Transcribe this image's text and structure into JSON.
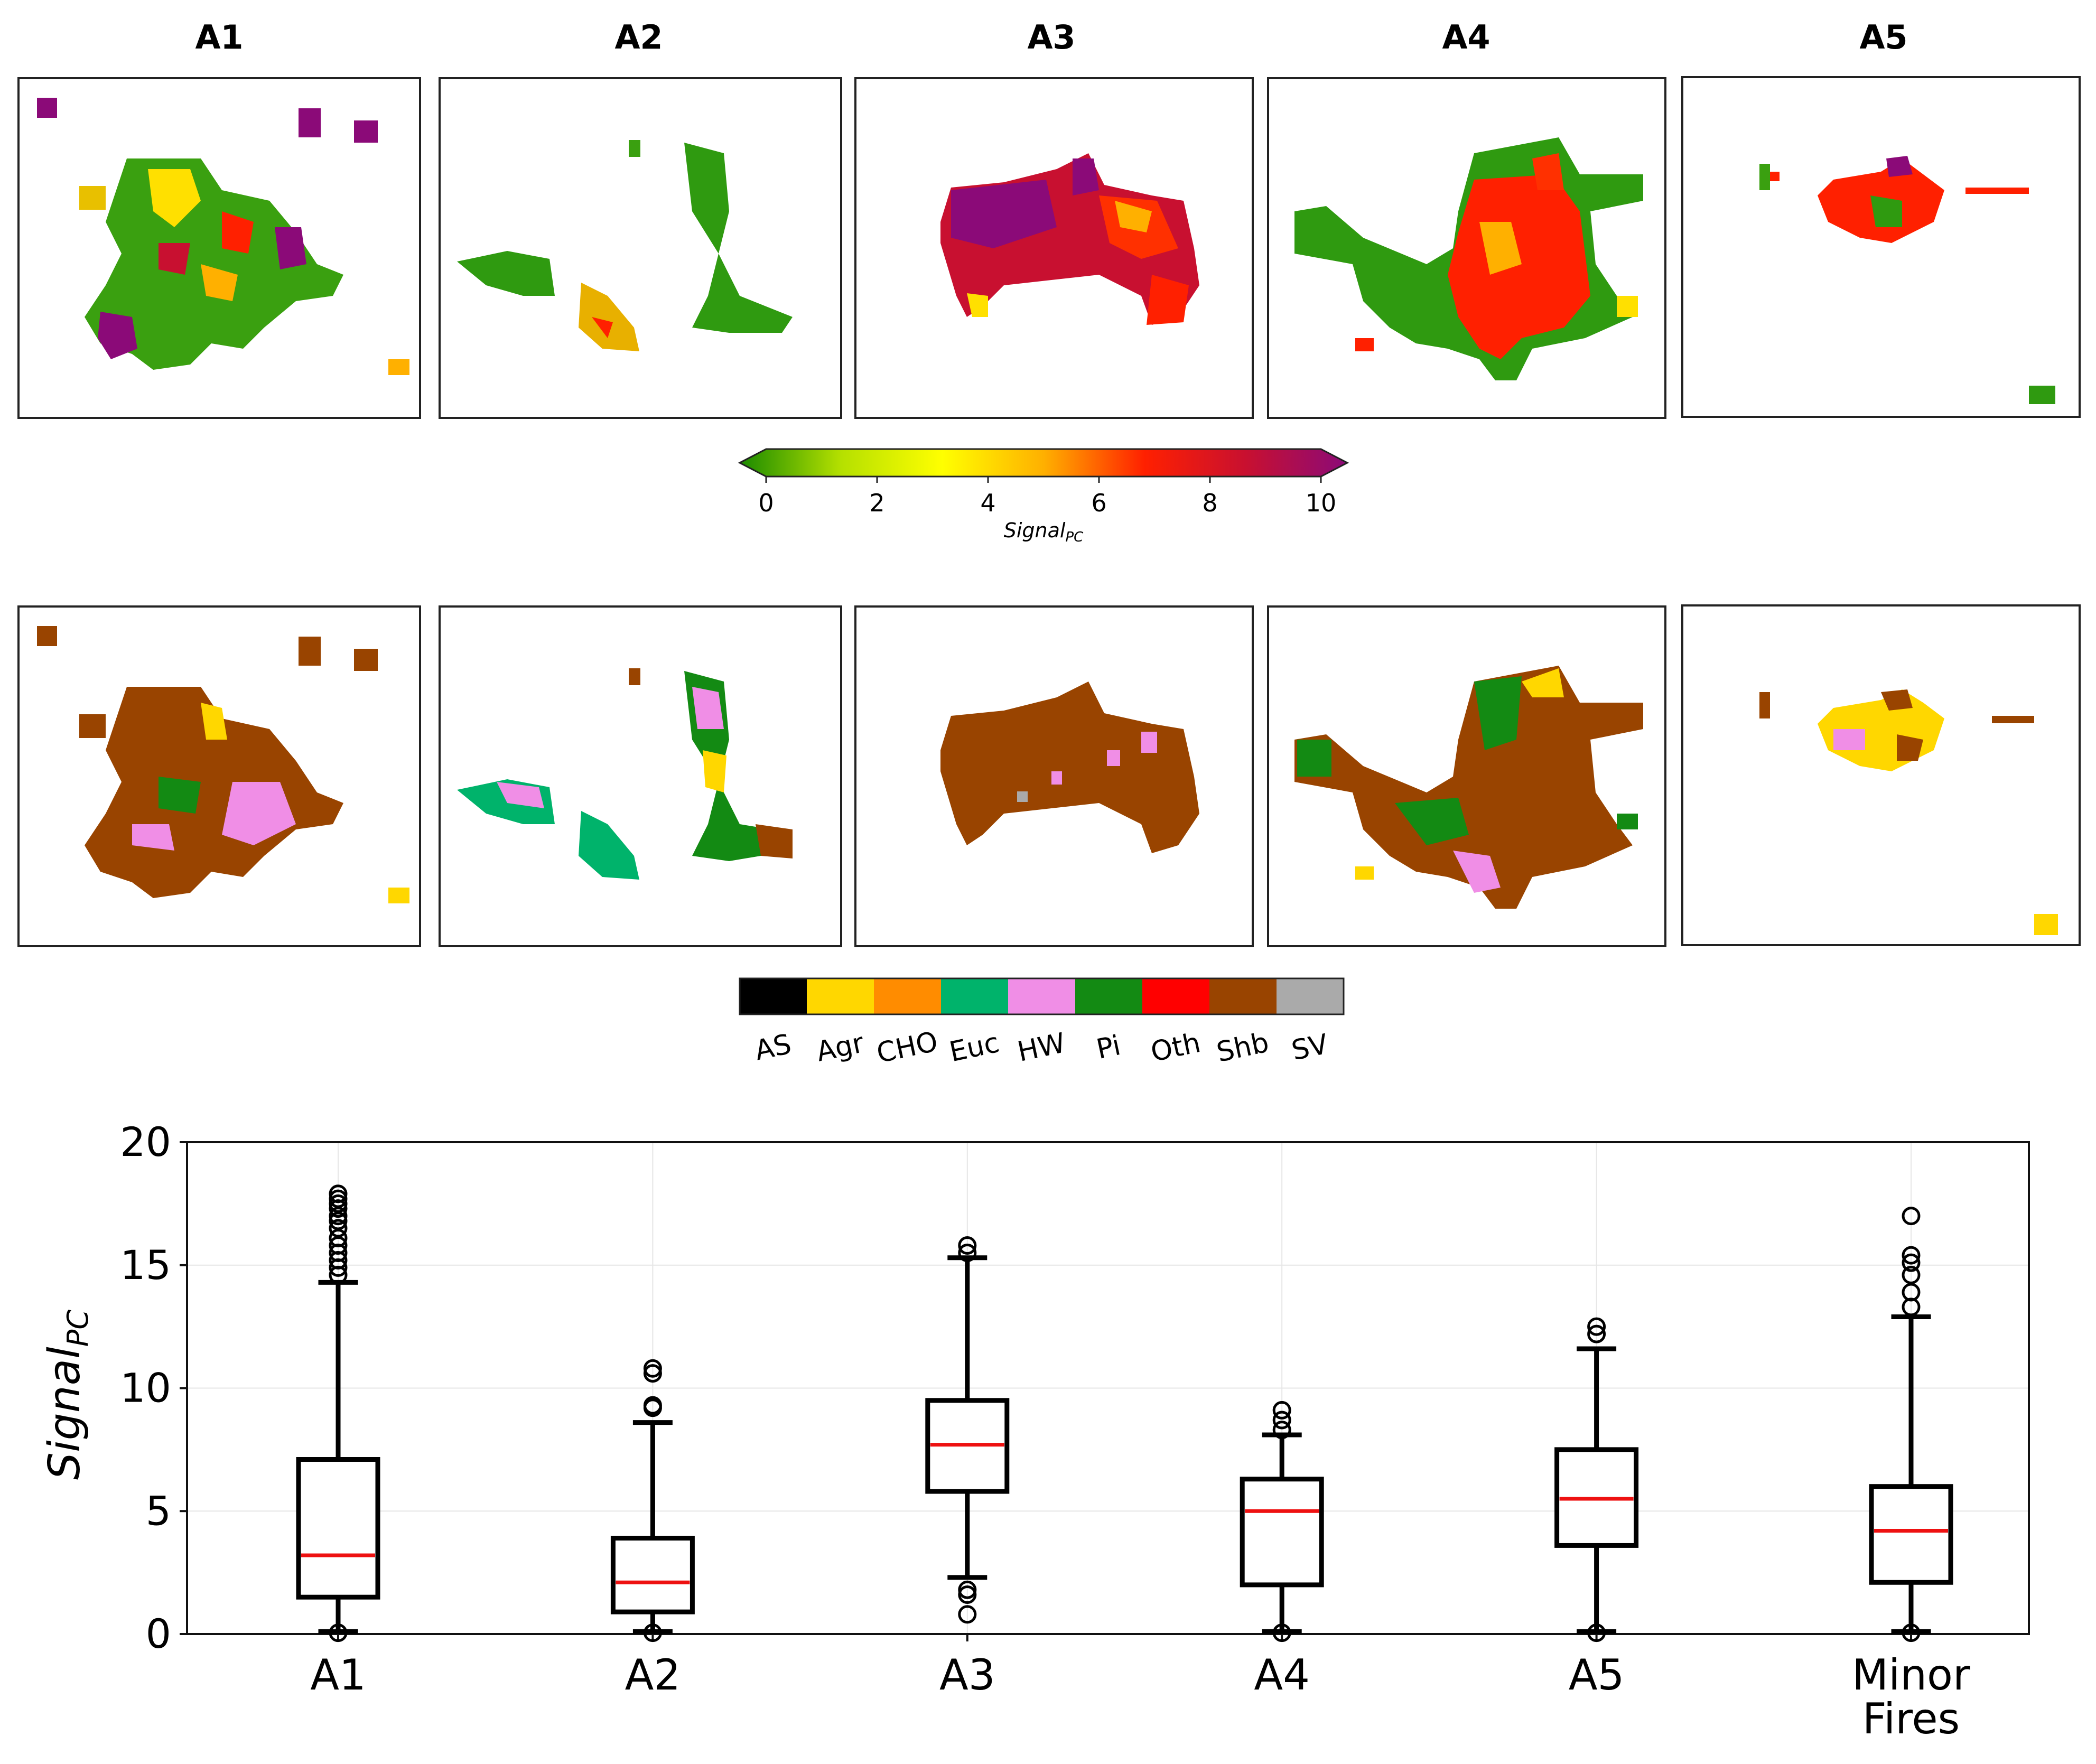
{
  "panels": [
    "A1",
    "A2",
    "A3",
    "A4",
    "A5"
  ],
  "colorbar": {
    "min": 0,
    "max": 10,
    "ticks": [
      "0",
      "2",
      "4",
      "6",
      "8",
      "10"
    ],
    "label": "Signal",
    "label_sub": "PC",
    "stops": [
      "#1a8a00",
      "#b5e000",
      "#ffff00",
      "#ffb000",
      "#ff2000",
      "#c81030",
      "#8b0a78"
    ]
  },
  "landcover_legend": {
    "classes": [
      {
        "label": "AS",
        "color": "#000000"
      },
      {
        "label": "Agr",
        "color": "#ffd700"
      },
      {
        "label": "CHO",
        "color": "#ff8c00"
      },
      {
        "label": "Euc",
        "color": "#00b36b"
      },
      {
        "label": "HW",
        "color": "#f08ee6"
      },
      {
        "label": "Pi",
        "color": "#138a13"
      },
      {
        "label": "Oth",
        "color": "#ff0000"
      },
      {
        "label": "Shb",
        "color": "#994400"
      },
      {
        "label": "SV",
        "color": "#aaaaaa"
      }
    ]
  },
  "chart_data": {
    "type": "box",
    "ylabel": "Signal",
    "ylabel_sub": "PC",
    "ylim": [
      0,
      20
    ],
    "yticks": [
      "0",
      "5",
      "10",
      "15",
      "20"
    ],
    "grid": true,
    "categories": [
      {
        "label": "A1",
        "label2": ""
      },
      {
        "label": "A2",
        "label2": ""
      },
      {
        "label": "A3",
        "label2": ""
      },
      {
        "label": "A4",
        "label2": ""
      },
      {
        "label": "A5",
        "label2": ""
      },
      {
        "label": "Minor",
        "label2": "Fires"
      }
    ],
    "boxes": [
      {
        "whislo": 0.1,
        "q1": 1.5,
        "med": 3.2,
        "q3": 7.1,
        "whishi": 14.3,
        "fliers": [
          14.6,
          14.9,
          15.2,
          15.5,
          15.8,
          16.1,
          16.5,
          16.8,
          17.0,
          17.3,
          17.5,
          17.7,
          17.9,
          0.05
        ]
      },
      {
        "whislo": 0.1,
        "q1": 0.9,
        "med": 2.1,
        "q3": 3.9,
        "whishi": 8.6,
        "fliers": [
          9.2,
          9.3,
          10.6,
          10.8,
          0.05
        ]
      },
      {
        "whislo": 2.3,
        "q1": 5.8,
        "med": 7.7,
        "q3": 9.5,
        "whishi": 15.3,
        "fliers": [
          15.5,
          15.8,
          1.8,
          1.6,
          0.8
        ]
      },
      {
        "whislo": 0.1,
        "q1": 2.0,
        "med": 5.0,
        "q3": 6.3,
        "whishi": 8.1,
        "fliers": [
          8.3,
          8.7,
          9.1,
          0.05
        ]
      },
      {
        "whislo": 0.1,
        "q1": 3.6,
        "med": 5.5,
        "q3": 7.5,
        "whishi": 11.6,
        "fliers": [
          12.2,
          12.5,
          0.05
        ]
      },
      {
        "whislo": 0.1,
        "q1": 2.1,
        "med": 4.2,
        "q3": 6.0,
        "whishi": 12.9,
        "fliers": [
          13.3,
          13.9,
          14.6,
          15.1,
          15.4,
          17.0,
          0.05
        ]
      }
    ]
  }
}
